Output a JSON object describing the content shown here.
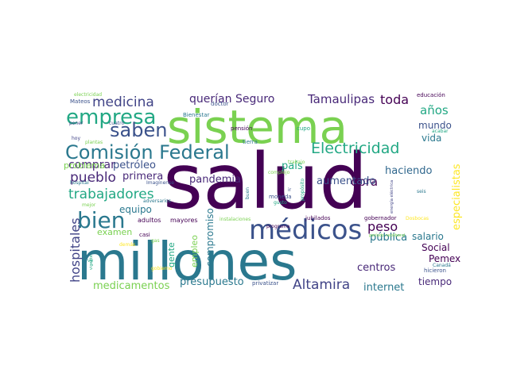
{
  "wordcloud": {
    "words": [
      {
        "text": "salud",
        "color": "#440154"
      },
      {
        "text": "millones",
        "color": "#2a788e"
      },
      {
        "text": "sistema",
        "color": "#7ad151"
      },
      {
        "text": "Comisión Federal",
        "color": "#2a788e"
      },
      {
        "text": "médicos",
        "color": "#3b528b"
      },
      {
        "text": "empresa",
        "color": "#22a884"
      },
      {
        "text": "bien",
        "color": "#2a788e"
      },
      {
        "text": "saben",
        "color": "#3b528b"
      },
      {
        "text": "Electricidad",
        "color": "#22a884"
      },
      {
        "text": "medicina",
        "color": "#414487"
      },
      {
        "text": "hospitales",
        "color": "#414487"
      },
      {
        "text": "Altamira",
        "color": "#414487"
      },
      {
        "text": "especialistas",
        "color": "#fde725"
      },
      {
        "text": "trabajadores",
        "color": "#22a884"
      },
      {
        "text": "pueblo",
        "color": "#482878"
      },
      {
        "text": "Tamaulipas",
        "color": "#482878"
      },
      {
        "text": "toda",
        "color": "#440154"
      },
      {
        "text": "años",
        "color": "#22a884"
      },
      {
        "text": "querían",
        "color": "#482878"
      },
      {
        "text": "Seguro",
        "color": "#482878"
      },
      {
        "text": "peso",
        "color": "#440154"
      },
      {
        "text": "obra",
        "color": "#440154"
      },
      {
        "text": "pandemia",
        "color": "#482878"
      },
      {
        "text": "país",
        "color": "#22a884"
      },
      {
        "text": "aumentado",
        "color": "#3b528b"
      },
      {
        "text": "haciendo",
        "color": "#31688e"
      },
      {
        "text": "mundo",
        "color": "#3b528b"
      },
      {
        "text": "vida",
        "color": "#2a788e"
      },
      {
        "text": "comprar",
        "color": "#482878"
      },
      {
        "text": "petróleo",
        "color": "#3b528b"
      },
      {
        "text": "problema",
        "color": "#7ad151"
      },
      {
        "text": "primera",
        "color": "#482878"
      },
      {
        "text": "equipo",
        "color": "#2a788e"
      },
      {
        "text": "pública",
        "color": "#2a788e"
      },
      {
        "text": "salario",
        "color": "#2a788e"
      },
      {
        "text": "Social",
        "color": "#440154"
      },
      {
        "text": "Pemex",
        "color": "#440154"
      },
      {
        "text": "centros",
        "color": "#482878"
      },
      {
        "text": "internet",
        "color": "#2a788e"
      },
      {
        "text": "tiempo",
        "color": "#482878"
      },
      {
        "text": "medicamentos",
        "color": "#7ad151"
      },
      {
        "text": "presupuesto",
        "color": "#2a788e"
      },
      {
        "text": "compromiso",
        "color": "#2a788e"
      },
      {
        "text": "empleo",
        "color": "#7ad151"
      },
      {
        "text": "gente",
        "color": "#22a884"
      },
      {
        "text": "examen",
        "color": "#7ad151"
      },
      {
        "text": "adultos",
        "color": "#440154"
      },
      {
        "text": "mayores",
        "color": "#440154"
      },
      {
        "text": "doctor",
        "color": "#3b528b"
      },
      {
        "text": "Bienestar",
        "color": "#2a788e"
      },
      {
        "text": "electricidad",
        "color": "#7ad151"
      },
      {
        "text": "Mateos",
        "color": "#3b528b"
      },
      {
        "text": "poner",
        "color": "#414487"
      },
      {
        "text": "cuatro",
        "color": "#3b528b"
      },
      {
        "text": "hoy",
        "color": "#414487"
      },
      {
        "text": "plantas",
        "color": "#7ad151"
      },
      {
        "text": "pensión",
        "color": "#440154"
      },
      {
        "text": "tierra",
        "color": "#2a788e"
      },
      {
        "text": "cupo",
        "color": "#22a884"
      },
      {
        "text": "trabajo",
        "color": "#7ad151"
      },
      {
        "text": "complejo",
        "color": "#7ad151"
      },
      {
        "text": "educación",
        "color": "#440154"
      },
      {
        "text": "acabar",
        "color": "#22a884"
      },
      {
        "text": "hospital",
        "color": "#2a788e"
      },
      {
        "text": "Imagínense",
        "color": "#3b528b"
      },
      {
        "text": "mejor",
        "color": "#7ad151"
      },
      {
        "text": "adversarios",
        "color": "#2a788e"
      },
      {
        "text": "buen",
        "color": "#2a788e"
      },
      {
        "text": "ir",
        "color": "#3b528b"
      },
      {
        "text": "moneda",
        "color": "#3b528b"
      },
      {
        "text": "gusto",
        "color": "#22a884"
      },
      {
        "text": "propósito",
        "color": "#22a884"
      },
      {
        "text": "energía eléctrica",
        "color": "#414487"
      },
      {
        "text": "seis",
        "color": "#2a788e"
      },
      {
        "text": "instalaciones",
        "color": "#7ad151"
      },
      {
        "text": "jubilados",
        "color": "#440154"
      },
      {
        "text": "gobernador",
        "color": "#440154"
      },
      {
        "text": "Dosbocas",
        "color": "#fde725"
      },
      {
        "text": "programa",
        "color": "#440154"
      },
      {
        "text": "período neoliberal",
        "color": "#7ad151"
      },
      {
        "text": "privatizar",
        "color": "#3b528b"
      },
      {
        "text": "hicieron",
        "color": "#3b528b"
      },
      {
        "text": "Canadá",
        "color": "#2a788e"
      },
      {
        "text": "gobierno",
        "color": "#fde725"
      },
      {
        "text": "casi",
        "color": "#440154"
      },
      {
        "text": "gas",
        "color": "#7ad151"
      },
      {
        "text": "vigente",
        "color": "#22a884"
      },
      {
        "text": "demás",
        "color": "#fde725"
      },
      {
        "text": "ve",
        "color": "#22a884"
      }
    ]
  }
}
